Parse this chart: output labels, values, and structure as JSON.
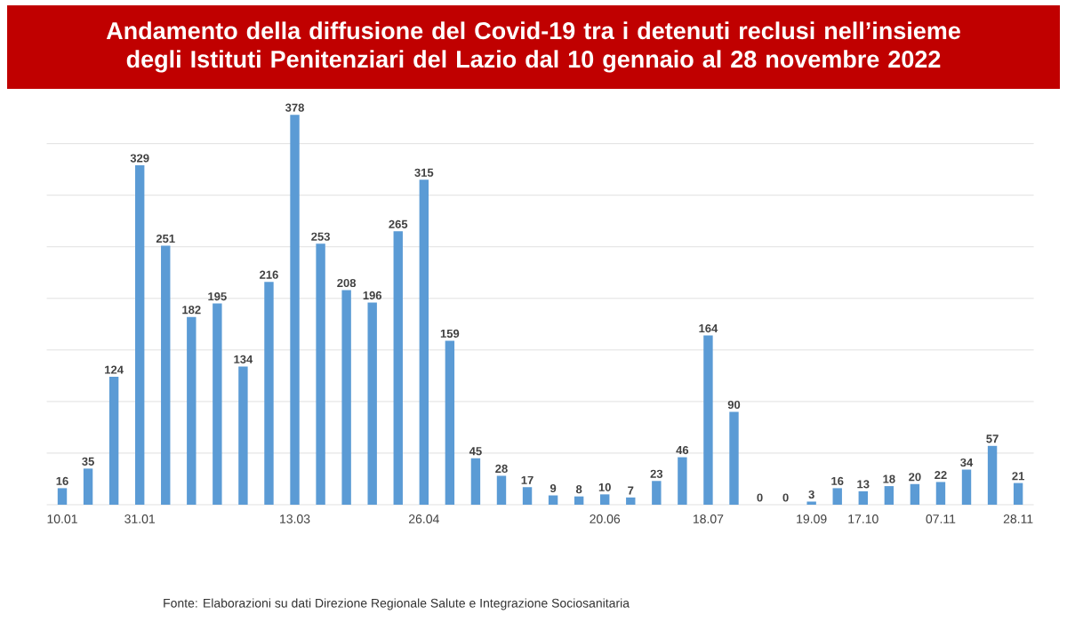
{
  "chart_data": {
    "type": "bar",
    "title": "Andamento della diffusione del Covid-19 tra i detenuti reclusi nell’insieme degli Istituti Penitenziari del Lazio dal 10 gennaio al 28 novembre 2022",
    "categories": [
      "10.01",
      null,
      null,
      "31.01",
      null,
      null,
      null,
      null,
      null,
      "13.03",
      null,
      null,
      null,
      null,
      "26.04",
      null,
      null,
      null,
      null,
      null,
      null,
      "20.06",
      null,
      null,
      null,
      "18.07",
      null,
      null,
      null,
      "19.09",
      null,
      "17.10",
      null,
      null,
      "07.11",
      null,
      null,
      "28.11"
    ],
    "values": [
      16,
      35,
      124,
      329,
      251,
      182,
      195,
      134,
      216,
      378,
      253,
      208,
      196,
      265,
      315,
      159,
      45,
      28,
      17,
      9,
      8,
      10,
      7,
      23,
      46,
      164,
      90,
      0,
      0,
      3,
      16,
      13,
      18,
      20,
      22,
      34,
      57,
      21
    ],
    "color": "#5b9bd5",
    "data_labels": true,
    "grid": "y",
    "tick_labels": "x",
    "yticks": [
      {
        "value": 0,
        "label": null
      },
      {
        "value": 50,
        "label": null
      },
      {
        "value": 100,
        "label": null
      },
      {
        "value": 150,
        "label": null
      },
      {
        "value": 200,
        "label": null
      },
      {
        "value": 250,
        "label": null
      },
      {
        "value": 300,
        "label": null
      },
      {
        "value": 350,
        "label": null
      }
    ],
    "annotations": [
      "Fonte: Elaborazioni su dati Direzione Regionale Salute e Integrazione Sociosanitaria"
    ]
  }
}
